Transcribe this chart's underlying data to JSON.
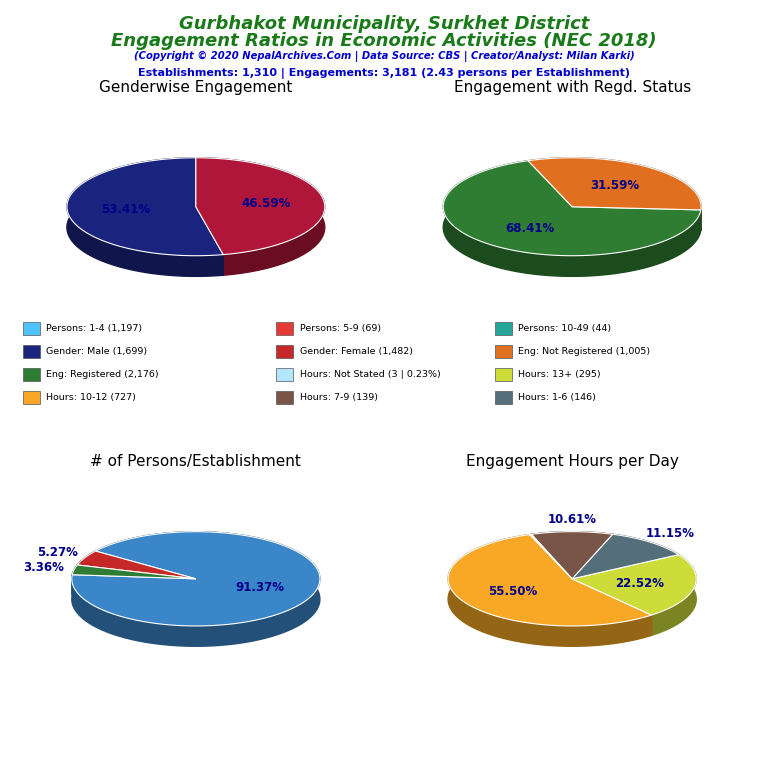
{
  "title_line1": "Gurbhakot Municipality, Surkhet District",
  "title_line2": "Engagement Ratios in Economic Activities (NEC 2018)",
  "subtitle": "(Copyright © 2020 NepalArchives.Com | Data Source: CBS | Creator/Analyst: Milan Karki)",
  "stats_line": "Establishments: 1,310 | Engagements: 3,181 (2.43 persons per Establishment)",
  "title_color": "#1a7a1a",
  "subtitle_color": "#0000cc",
  "stats_color": "#0000cc",
  "chart1_title": "Genderwise Engagement",
  "chart1_slices": [
    53.41,
    46.59
  ],
  "chart1_colors": [
    "#1a237e",
    "#b0163a"
  ],
  "chart1_labels": [
    "53.41%",
    "46.59%"
  ],
  "chart1_startangle": 90,
  "chart2_title": "Engagement with Regd. Status",
  "chart2_slices": [
    68.41,
    31.59
  ],
  "chart2_colors": [
    "#2e7d32",
    "#e07020"
  ],
  "chart2_labels": [
    "68.41%",
    "31.59%"
  ],
  "chart2_startangle": 110,
  "chart3_title": "# of Persons/Establishment",
  "chart3_slices": [
    91.37,
    5.27,
    3.36
  ],
  "chart3_colors": [
    "#3a86c8",
    "#c62828",
    "#2e7d32"
  ],
  "chart3_labels": [
    "91.37%",
    "5.27%",
    "3.36%"
  ],
  "chart3_startangle": 175,
  "chart4_title": "Engagement Hours per Day",
  "chart4_slices": [
    55.5,
    22.52,
    11.15,
    10.61,
    0.23
  ],
  "chart4_colors": [
    "#f9a825",
    "#cddc39",
    "#546e7a",
    "#795548",
    "#b3e5fc"
  ],
  "chart4_labels": [
    "55.50%",
    "22.52%",
    "11.15%",
    "10.61%",
    ""
  ],
  "chart4_startangle": 110,
  "legend_items": [
    {
      "label": "Persons: 1-4 (1,197)",
      "color": "#4fc3f7"
    },
    {
      "label": "Persons: 5-9 (69)",
      "color": "#e53935"
    },
    {
      "label": "Persons: 10-49 (44)",
      "color": "#26a69a"
    },
    {
      "label": "Gender: Male (1,699)",
      "color": "#1a237e"
    },
    {
      "label": "Gender: Female (1,482)",
      "color": "#c62828"
    },
    {
      "label": "Eng: Not Registered (1,005)",
      "color": "#e07020"
    },
    {
      "label": "Eng: Registered (2,176)",
      "color": "#2e7d32"
    },
    {
      "label": "Hours: Not Stated (3 | 0.23%)",
      "color": "#b3e5fc"
    },
    {
      "label": "Hours: 13+ (295)",
      "color": "#cddc39"
    },
    {
      "label": "Hours: 10-12 (727)",
      "color": "#f9a825"
    },
    {
      "label": "Hours: 7-9 (139)",
      "color": "#795548"
    },
    {
      "label": "Hours: 1-6 (146)",
      "color": "#546e7a"
    }
  ]
}
